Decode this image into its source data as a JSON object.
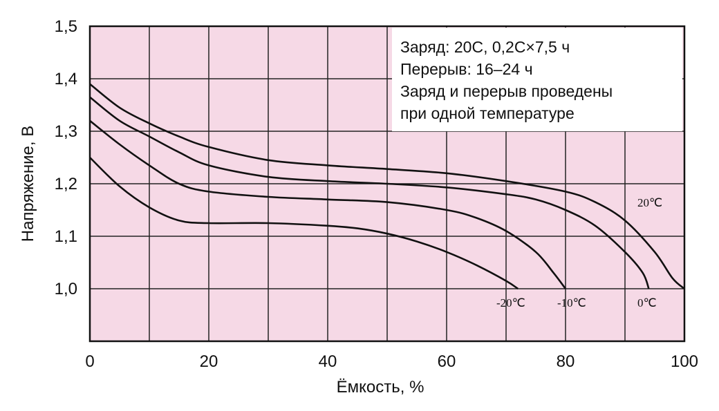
{
  "chart_data": {
    "type": "line",
    "title": "",
    "xlabel": "Ёмкость, %",
    "ylabel": "Напряжение, В",
    "xlim": [
      0,
      100
    ],
    "ylim": [
      0.9,
      1.5
    ],
    "x_ticks": [
      "0",
      "20",
      "40",
      "60",
      "80",
      "100"
    ],
    "y_ticks": [
      "1,0",
      "1,1",
      "1,2",
      "1,3",
      "1,4",
      "1,5"
    ],
    "grid": true,
    "background_color": "#f6d9e6",
    "note_box_color": "#ffffff",
    "line_color": "#111111",
    "annotation": [
      "Заряд: 20С, 0,2С×7,5 ч",
      "Перерыв: 16–24 ч",
      "Заряд и перерыв проведены",
      "при одной температуре"
    ],
    "series": [
      {
        "name": "20℃",
        "x": [
          0,
          5,
          10,
          15,
          20,
          30,
          40,
          50,
          60,
          70,
          80,
          85,
          90,
          95,
          98,
          100
        ],
        "y": [
          1.39,
          1.345,
          1.315,
          1.29,
          1.27,
          1.245,
          1.235,
          1.228,
          1.22,
          1.205,
          1.185,
          1.165,
          1.13,
          1.07,
          1.02,
          1.0
        ]
      },
      {
        "name": "0℃",
        "x": [
          0,
          5,
          10,
          15,
          20,
          30,
          40,
          50,
          60,
          70,
          75,
          80,
          85,
          90,
          93,
          94
        ],
        "y": [
          1.365,
          1.32,
          1.29,
          1.26,
          1.235,
          1.213,
          1.205,
          1.2,
          1.193,
          1.18,
          1.17,
          1.15,
          1.12,
          1.07,
          1.03,
          1.0
        ]
      },
      {
        "name": "-10℃",
        "x": [
          0,
          5,
          10,
          15,
          20,
          30,
          40,
          50,
          60,
          65,
          70,
          75,
          78,
          80
        ],
        "y": [
          1.32,
          1.275,
          1.235,
          1.2,
          1.185,
          1.175,
          1.17,
          1.165,
          1.15,
          1.135,
          1.11,
          1.07,
          1.03,
          1.0
        ]
      },
      {
        "name": "-20℃",
        "x": [
          0,
          5,
          10,
          15,
          20,
          30,
          40,
          45,
          50,
          55,
          60,
          65,
          70,
          72
        ],
        "y": [
          1.25,
          1.195,
          1.155,
          1.13,
          1.125,
          1.125,
          1.12,
          1.115,
          1.105,
          1.09,
          1.07,
          1.045,
          1.015,
          1.0
        ]
      }
    ]
  }
}
